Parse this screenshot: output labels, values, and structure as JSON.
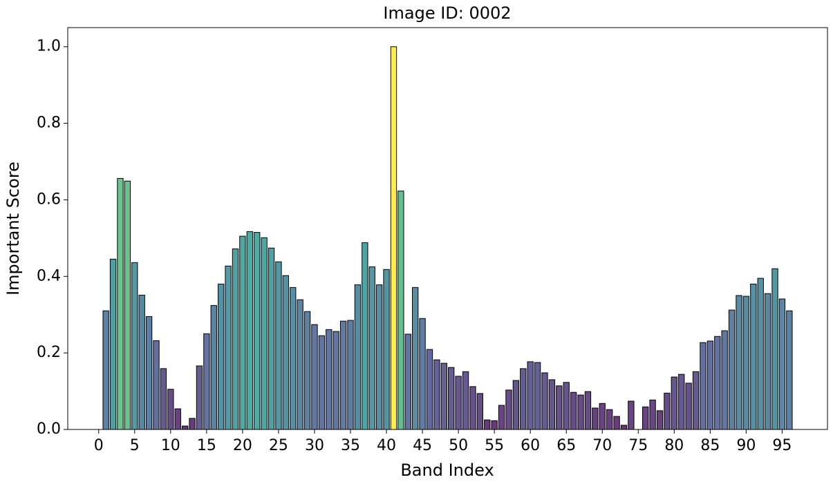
{
  "chart_data": {
    "type": "bar",
    "title": "Image ID: 0002",
    "x_label": "Band Index",
    "y_label": "Important Score",
    "x": [
      1,
      2,
      3,
      4,
      5,
      6,
      7,
      8,
      9,
      10,
      11,
      12,
      13,
      14,
      15,
      16,
      17,
      18,
      19,
      20,
      21,
      22,
      23,
      24,
      25,
      26,
      27,
      28,
      29,
      30,
      31,
      32,
      33,
      34,
      35,
      36,
      37,
      38,
      39,
      40,
      41,
      42,
      43,
      44,
      45,
      46,
      47,
      48,
      49,
      50,
      51,
      52,
      53,
      54,
      55,
      56,
      57,
      58,
      59,
      60,
      61,
      62,
      63,
      64,
      65,
      66,
      67,
      68,
      69,
      70,
      71,
      72,
      73,
      74,
      75,
      76,
      77,
      78,
      79,
      80,
      81,
      82,
      83,
      84,
      85,
      86,
      87,
      88,
      89,
      90,
      91,
      92,
      93,
      94,
      95,
      96
    ],
    "values": [
      0.31,
      0.445,
      0.656,
      0.649,
      0.436,
      0.351,
      0.295,
      0.232,
      0.159,
      0.105,
      0.054,
      0.009,
      0.029,
      0.166,
      0.25,
      0.324,
      0.38,
      0.427,
      0.472,
      0.505,
      0.517,
      0.515,
      0.501,
      0.474,
      0.438,
      0.402,
      0.371,
      0.339,
      0.308,
      0.274,
      0.245,
      0.261,
      0.256,
      0.283,
      0.285,
      0.378,
      0.488,
      0.425,
      0.378,
      0.418,
      1.0,
      0.623,
      0.249,
      0.371,
      0.29,
      0.209,
      0.182,
      0.173,
      0.162,
      0.139,
      0.151,
      0.112,
      0.094,
      0.025,
      0.023,
      0.063,
      0.103,
      0.128,
      0.159,
      0.177,
      0.175,
      0.148,
      0.13,
      0.114,
      0.123,
      0.097,
      0.09,
      0.099,
      0.056,
      0.068,
      0.052,
      0.034,
      0.011,
      0.074,
      0,
      0.059,
      0.077,
      0.049,
      0.095,
      0.137,
      0.144,
      0.121,
      0.151,
      0.227,
      0.231,
      0.243,
      0.258,
      0.312,
      0.35,
      0.348,
      0.38,
      0.395,
      0.355,
      0.42,
      0.341,
      0.31
    ],
    "color_map": "viridis",
    "xlim": [
      -4.3,
      101.3
    ],
    "xticks": [
      0,
      5,
      10,
      15,
      20,
      25,
      30,
      35,
      40,
      45,
      50,
      55,
      60,
      65,
      70,
      75,
      80,
      85,
      90,
      95
    ],
    "ylim": [
      0,
      1.05
    ],
    "yticks": [
      {
        "value": 0,
        "label": "0.0"
      },
      0.2,
      0.4,
      0.6,
      0.8,
      {
        "value": 1,
        "label": "1.0"
      }
    ],
    "grid": false
  }
}
